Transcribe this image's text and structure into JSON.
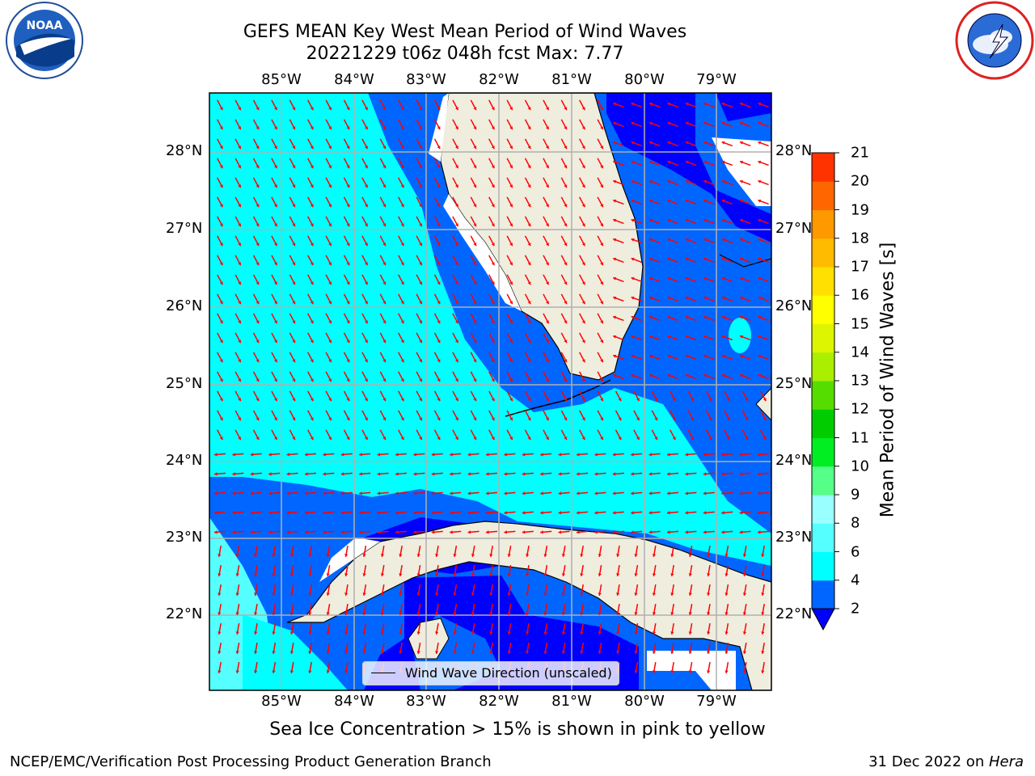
{
  "title_line1": "GEFS MEAN Key West Mean Period of Wind Waves",
  "title_line2": "20221229 t06z 048h fcst   Max: 7.77",
  "logos": {
    "left": "noaa-logo",
    "right": "nws-logo"
  },
  "map": {
    "lon_labels": [
      "85°W",
      "84°W",
      "83°W",
      "82°W",
      "81°W",
      "80°W",
      "79°W"
    ],
    "lat_labels": [
      "28°N",
      "27°N",
      "26°N",
      "25°N",
      "24°N",
      "23°N",
      "22°N"
    ],
    "colors": {
      "ocean_low": "#0000ff",
      "ocean_2_4": "#0066ff",
      "ocean_4_6": "#00ffff",
      "ocean_6_8": "#55ffff",
      "land": "#efedde",
      "arrows": "#ff0000",
      "grid": "#b0b0b0"
    },
    "legend_label": "Wind Wave Direction (unscaled)"
  },
  "colorbar": {
    "label": "Mean Period of Wind Waves [s]",
    "ticks": [
      "2",
      "4",
      "6",
      "8",
      "9",
      "10",
      "11",
      "12",
      "13",
      "14",
      "15",
      "16",
      "17",
      "18",
      "19",
      "20",
      "21"
    ],
    "colors": [
      "#0066ff",
      "#00ffff",
      "#55ffff",
      "#99ffff",
      "#55ff88",
      "#00ee22",
      "#00cc00",
      "#55dd00",
      "#aaee00",
      "#ddf500",
      "#ffff00",
      "#ffe000",
      "#ffbb00",
      "#ff9900",
      "#ff6600",
      "#ff3300",
      "#ff0000"
    ],
    "extend_low_color": "#0000ff"
  },
  "ice_note": "Sea Ice Concentration > 15% is shown in pink to yellow",
  "credit_left": "NCEP/EMC/Verification Post Processing Product Generation Branch",
  "credit_right_prefix": "31 Dec 2022 on ",
  "credit_right_host": "Hera"
}
